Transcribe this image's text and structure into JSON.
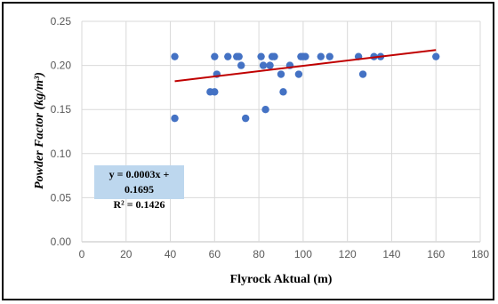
{
  "chart_data": {
    "type": "scatter",
    "xlabel": "Flyrock Aktual (m)",
    "ylabel": "Powder Factor (kg/m³)",
    "xlim": [
      0,
      180
    ],
    "ylim": [
      0,
      0.25
    ],
    "x_ticks": [
      "0",
      "20",
      "40",
      "60",
      "80",
      "100",
      "120",
      "140",
      "160",
      "180"
    ],
    "y_ticks": [
      "0.00",
      "0.05",
      "0.10",
      "0.15",
      "0.20",
      "0.25"
    ],
    "grid": true,
    "points": [
      {
        "x": 42,
        "y": 0.21
      },
      {
        "x": 42,
        "y": 0.14
      },
      {
        "x": 58,
        "y": 0.17
      },
      {
        "x": 60,
        "y": 0.21
      },
      {
        "x": 60,
        "y": 0.17
      },
      {
        "x": 61,
        "y": 0.19
      },
      {
        "x": 66,
        "y": 0.21
      },
      {
        "x": 70,
        "y": 0.21
      },
      {
        "x": 71,
        "y": 0.21
      },
      {
        "x": 72,
        "y": 0.2
      },
      {
        "x": 74,
        "y": 0.14
      },
      {
        "x": 81,
        "y": 0.21
      },
      {
        "x": 82,
        "y": 0.2
      },
      {
        "x": 83,
        "y": 0.15
      },
      {
        "x": 85,
        "y": 0.2
      },
      {
        "x": 86,
        "y": 0.21
      },
      {
        "x": 87,
        "y": 0.21
      },
      {
        "x": 90,
        "y": 0.19
      },
      {
        "x": 91,
        "y": 0.17
      },
      {
        "x": 94,
        "y": 0.2
      },
      {
        "x": 98,
        "y": 0.19
      },
      {
        "x": 99,
        "y": 0.21
      },
      {
        "x": 100,
        "y": 0.21
      },
      {
        "x": 101,
        "y": 0.21
      },
      {
        "x": 108,
        "y": 0.21
      },
      {
        "x": 112,
        "y": 0.21
      },
      {
        "x": 125,
        "y": 0.21
      },
      {
        "x": 127,
        "y": 0.19
      },
      {
        "x": 132,
        "y": 0.21
      },
      {
        "x": 135,
        "y": 0.21
      },
      {
        "x": 160,
        "y": 0.21
      }
    ],
    "trendline": {
      "slope": 0.0003,
      "intercept": 0.1695,
      "x_range": [
        42,
        160
      ]
    },
    "annotation": {
      "equation": "y = 0.0003x + 0.1695",
      "r2": "R² = 0.1426"
    },
    "colors": {
      "points": "#4472c4",
      "trendline": "#c00000",
      "grid": "#d9d9d9",
      "annotation_bg": "#bdd7ee"
    }
  }
}
